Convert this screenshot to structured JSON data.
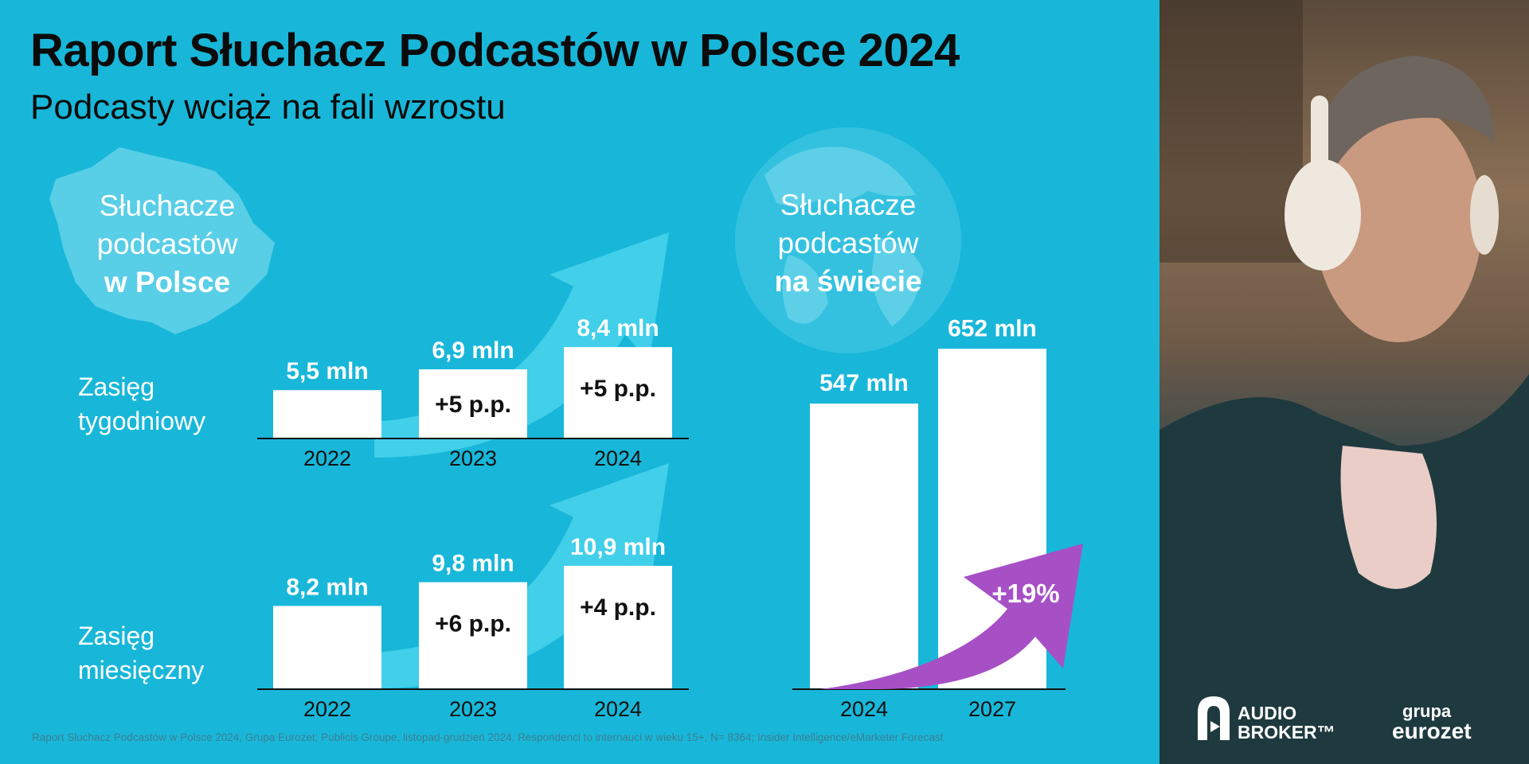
{
  "header": {
    "title": "Raport Słuchacz Podcastów w Polsce 2024",
    "subtitle": "Podcasty wciąż na fali wzrostu"
  },
  "poland_label": {
    "line1": "Słuchacze",
    "line2": "podcastów",
    "line3": "w Polsce"
  },
  "world_label": {
    "line1": "Słuchacze",
    "line2": "podcastów",
    "line3": "na świecie"
  },
  "rows": {
    "weekly": {
      "line1": "Zasięg",
      "line2": "tygodniowy"
    },
    "monthly": {
      "line1": "Zasięg",
      "line2": "miesięczny"
    }
  },
  "chart_data": [
    {
      "type": "bar",
      "id": "weekly",
      "categories": [
        "2022",
        "2023",
        "2024"
      ],
      "values": [
        5.5,
        6.9,
        8.4
      ],
      "data_labels": [
        "5,5 mln",
        "6,9 mln",
        "8,4 mln"
      ],
      "annotations": [
        "",
        "+5 p.p.",
        "+5 p.p."
      ],
      "ylabel": "Zasięg tygodniowy"
    },
    {
      "type": "bar",
      "id": "monthly",
      "categories": [
        "2022",
        "2023",
        "2024"
      ],
      "values": [
        8.2,
        9.8,
        10.9
      ],
      "data_labels": [
        "8,2 mln",
        "9,8 mln",
        "10,9 mln"
      ],
      "annotations": [
        "",
        "+6 p.p.",
        "+4 p.p."
      ],
      "ylabel": "Zasięg miesięczny"
    },
    {
      "type": "bar",
      "id": "world",
      "categories": [
        "2024",
        "2027"
      ],
      "values": [
        547,
        652
      ],
      "data_labels": [
        "547 mln",
        "652 mln"
      ],
      "growth_label": "+19%"
    }
  ],
  "footnote": "Raport Słuchacz Podcastów w Polsce 2024, Grupa Eurozet; Publicis Groupe, listopad-grudzień 2024. Respondenci to internauci w wieku 15+, N= 8364; Insider Intelligence/eMarketer Forecast",
  "logos": {
    "audio_broker": {
      "line1": "AUDIO",
      "line2": "BROKER™"
    },
    "eurozet": {
      "line1": "grupa",
      "line2": "eurozet"
    }
  },
  "colors": {
    "background": "#18b7d9",
    "arrow_light": "#49d3eb",
    "growth_arrow": "#a750c6",
    "text_dark": "#0b0b0b"
  },
  "photo": {
    "icon": "man-with-headphones"
  }
}
